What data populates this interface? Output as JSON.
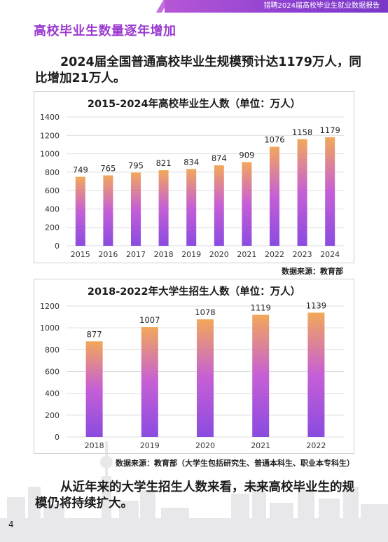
{
  "header": {
    "banner_text": "猎聘2024届高校毕业生就业数据报告",
    "accent": "#8b3fd0"
  },
  "section_title": "高校毕业生数量逐年增加",
  "intro_text": "2024届全国普通高校毕业生规模预计达1179万人，同比增加21万人。",
  "chart_data": [
    {
      "type": "bar",
      "title": "2015-2024年高校毕业生人数（单位：万人）",
      "categories": [
        "2015",
        "2016",
        "2017",
        "2018",
        "2019",
        "2020",
        "2021",
        "2022",
        "2023",
        "2024"
      ],
      "values": [
        749,
        765,
        795,
        821,
        834,
        874,
        909,
        1076,
        1158,
        1179
      ],
      "yticks": [
        0,
        200,
        400,
        600,
        800,
        1000,
        1200,
        1400
      ],
      "ylim": [
        0,
        1400
      ],
      "grid": true,
      "bar_gradient": [
        "#f2a85a",
        "#c65fd6",
        "#8a4be0"
      ]
    },
    {
      "type": "bar",
      "title": "2018-2022年大学生招生人数（单位：万人）",
      "categories": [
        "2018",
        "2019",
        "2020",
        "2021",
        "2022"
      ],
      "values": [
        877,
        1007,
        1078,
        1119,
        1139
      ],
      "yticks": [
        0,
        200,
        400,
        600,
        800,
        1000,
        1200
      ],
      "ylim": [
        0,
        1200
      ],
      "grid": true,
      "bar_gradient": [
        "#f2a85a",
        "#c65fd6",
        "#8a4be0"
      ]
    }
  ],
  "source_1": "数据来源：教育部",
  "source_2": "数据来源：教育部（大学生包括研究生、普通本科生、职业本专科生）",
  "outro_text": "从近年来的大学生招生人数来看，未来高校毕业生的规模仍将持续扩大。",
  "page_number": "4"
}
